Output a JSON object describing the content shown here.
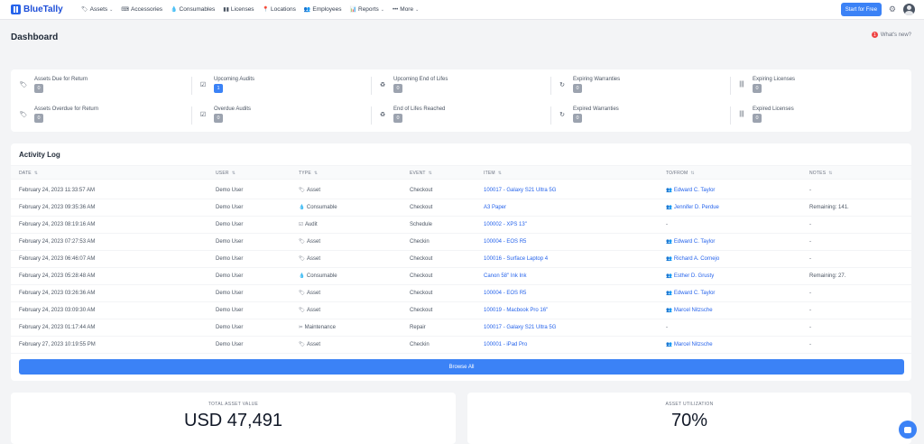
{
  "brand": {
    "name": "BlueTally"
  },
  "nav": {
    "items": [
      {
        "label": "Assets",
        "icon": "tag-icon",
        "glyph": "🏷",
        "dropdown": true
      },
      {
        "label": "Accessories",
        "icon": "keyboard-icon",
        "glyph": "⌨",
        "dropdown": false
      },
      {
        "label": "Consumables",
        "icon": "drop-icon",
        "glyph": "💧",
        "dropdown": false
      },
      {
        "label": "Licenses",
        "icon": "barcode-icon",
        "glyph": "▮▮",
        "dropdown": false
      },
      {
        "label": "Locations",
        "icon": "map-pin-icon",
        "glyph": "📍",
        "dropdown": false
      },
      {
        "label": "Employees",
        "icon": "users-icon",
        "glyph": "👥",
        "dropdown": false
      },
      {
        "label": "Reports",
        "icon": "bar-chart-icon",
        "glyph": "📊",
        "dropdown": true
      },
      {
        "label": "More",
        "icon": "ellipsis-icon",
        "glyph": "•••",
        "dropdown": true
      }
    ],
    "start_button": "Start for Free"
  },
  "page": {
    "title": "Dashboard",
    "whats_new": "What's new?",
    "whats_new_count": "1"
  },
  "stats": [
    {
      "label": "Assets Due for Return",
      "value": "0",
      "glyph": "🏷"
    },
    {
      "label": "Upcoming Audits",
      "value": "1",
      "glyph": "☑",
      "highlight": true
    },
    {
      "label": "Upcoming End of Lifes",
      "value": "0",
      "glyph": "♻"
    },
    {
      "label": "Expiring Warranties",
      "value": "0",
      "glyph": "↻"
    },
    {
      "label": "Expiring Licenses",
      "value": "0",
      "glyph": "|||"
    },
    {
      "label": "Assets Overdue for Return",
      "value": "0",
      "glyph": "🏷"
    },
    {
      "label": "Overdue Audits",
      "value": "0",
      "glyph": "☑"
    },
    {
      "label": "End of Lifes Reached",
      "value": "0",
      "glyph": "♻"
    },
    {
      "label": "Expired Warranties",
      "value": "0",
      "glyph": "↻"
    },
    {
      "label": "Expired Licenses",
      "value": "0",
      "glyph": "|||"
    }
  ],
  "activity": {
    "title": "Activity Log",
    "columns": [
      "DATE",
      "USER",
      "TYPE",
      "EVENT",
      "ITEM",
      "TO/FROM",
      "NOTES"
    ],
    "rows": [
      {
        "date": "February 24, 2023 11:33:57 AM",
        "user": "Demo User",
        "type": "Asset",
        "type_glyph": "🏷",
        "event": "Checkout",
        "item": "100017 - Galaxy S21 Ultra 5G",
        "item_link": true,
        "to": "Edward C. Taylor",
        "to_link": true,
        "notes": "-"
      },
      {
        "date": "February 24, 2023 09:35:36 AM",
        "user": "Demo User",
        "type": "Consumable",
        "type_glyph": "💧",
        "event": "Checkout",
        "item": "A3 Paper",
        "item_link": true,
        "to": "Jennifer D. Perdue",
        "to_link": true,
        "notes": "Remaining: 141."
      },
      {
        "date": "February 24, 2023 08:19:16 AM",
        "user": "Demo User",
        "type": "Audit",
        "type_glyph": "☑",
        "event": "Schedule",
        "item": "100002 - XPS 13\"",
        "item_link": true,
        "to": "-",
        "to_link": false,
        "notes": "-"
      },
      {
        "date": "February 24, 2023 07:27:53 AM",
        "user": "Demo User",
        "type": "Asset",
        "type_glyph": "🏷",
        "event": "Checkin",
        "item": "100004 - EOS R5",
        "item_link": true,
        "to": "Edward C. Taylor",
        "to_link": true,
        "notes": "-"
      },
      {
        "date": "February 24, 2023 06:46:07 AM",
        "user": "Demo User",
        "type": "Asset",
        "type_glyph": "🏷",
        "event": "Checkout",
        "item": "100016 - Surface Laptop 4",
        "item_link": true,
        "to": "Richard A. Cornejo",
        "to_link": true,
        "notes": "-"
      },
      {
        "date": "February 24, 2023 05:28:48 AM",
        "user": "Demo User",
        "type": "Consumable",
        "type_glyph": "💧",
        "event": "Checkout",
        "item": "Canon 58\" Ink Ink",
        "item_link": true,
        "to": "Esther D. Grusty",
        "to_link": true,
        "notes": "Remaining: 27."
      },
      {
        "date": "February 24, 2023 03:26:36 AM",
        "user": "Demo User",
        "type": "Asset",
        "type_glyph": "🏷",
        "event": "Checkout",
        "item": "100004 - EOS R5",
        "item_link": true,
        "to": "Edward C. Taylor",
        "to_link": true,
        "notes": "-"
      },
      {
        "date": "February 24, 2023 03:09:30 AM",
        "user": "Demo User",
        "type": "Asset",
        "type_glyph": "🏷",
        "event": "Checkout",
        "item": "100019 - Macbook Pro 16\"",
        "item_link": true,
        "to": "Marcel Nitzsche",
        "to_link": true,
        "notes": "-"
      },
      {
        "date": "February 24, 2023 01:17:44 AM",
        "user": "Demo User",
        "type": "Maintenance",
        "type_glyph": "✂",
        "event": "Repair",
        "item": "100017 - Galaxy S21 Ultra 5G",
        "item_link": true,
        "to": "-",
        "to_link": false,
        "notes": "-"
      },
      {
        "date": "February 27, 2023 10:19:55 PM",
        "user": "Demo User",
        "type": "Asset",
        "type_glyph": "🏷",
        "event": "Checkin",
        "item": "100001 - iPad Pro",
        "item_link": true,
        "to": "Marcel Nitzsche",
        "to_link": true,
        "notes": "-"
      }
    ],
    "browse_label": "Browse All"
  },
  "summary": {
    "total_asset_value_label": "TOTAL ASSET VALUE",
    "total_asset_value": "USD 47,491",
    "asset_utilization_label": "ASSET UTILIZATION",
    "asset_utilization": "70%"
  },
  "colors": {
    "accent": "#3b82f6",
    "link": "#2563eb",
    "background": "#f3f4f6"
  }
}
